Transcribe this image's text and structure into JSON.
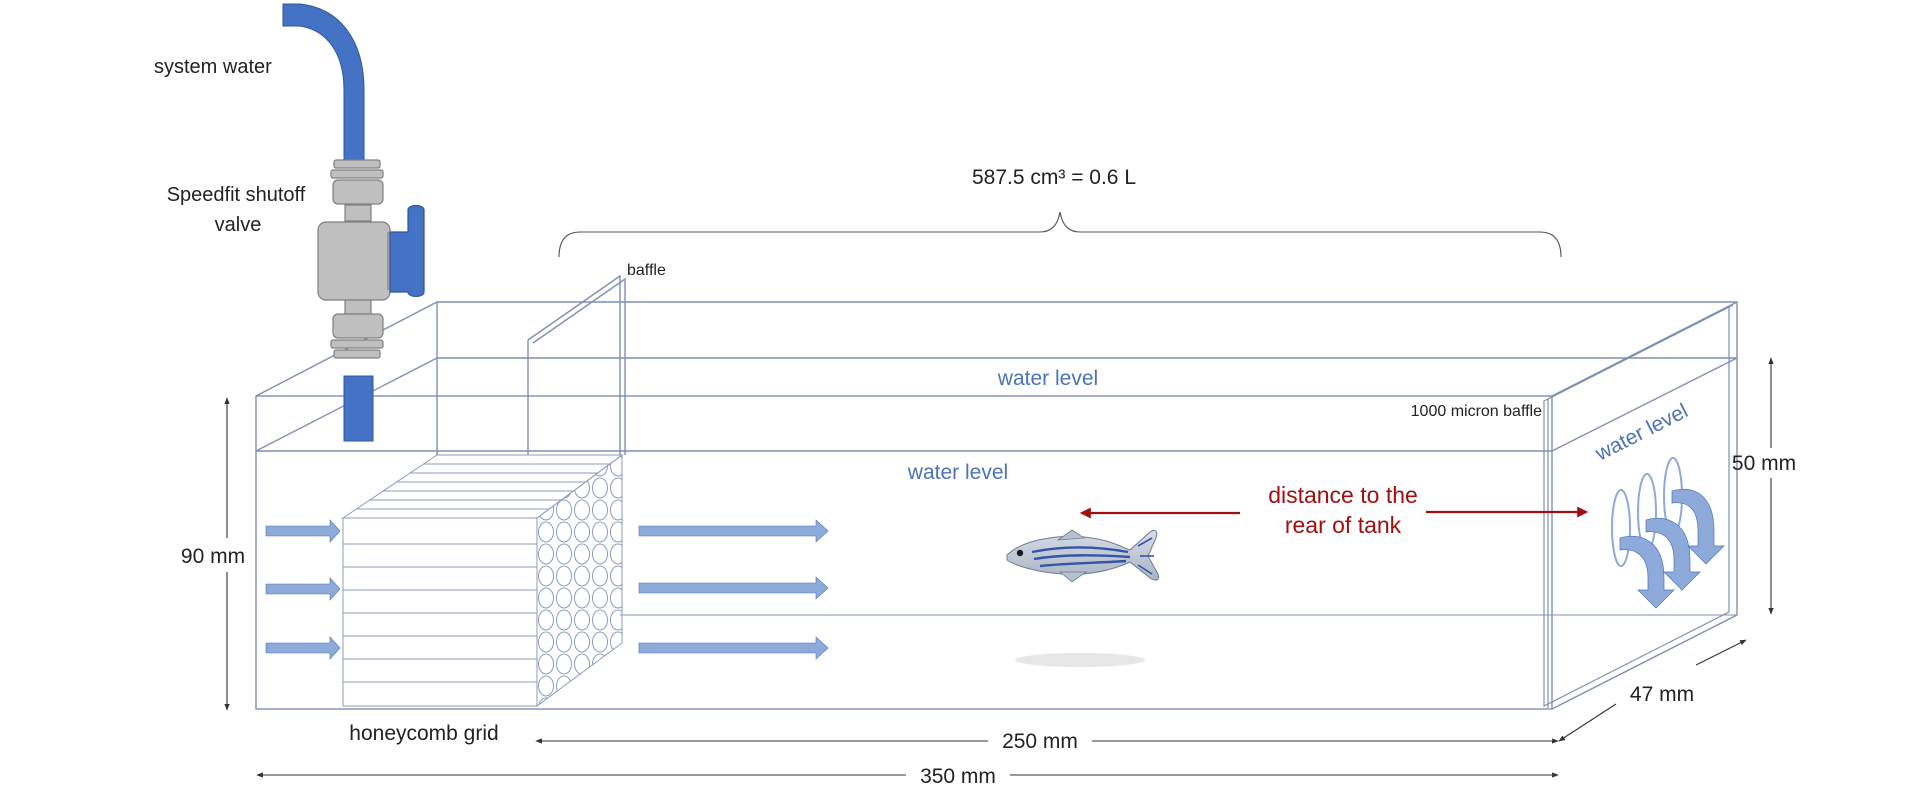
{
  "labels": {
    "system_water": "system water",
    "valve_line1": "Speedfit shutoff",
    "valve_line2": "valve",
    "volume": "587.5 cm³ = 0.6 L",
    "baffle": "baffle",
    "water_level_back": "water level",
    "water_level_front": "water level",
    "water_level_right": "water level",
    "micron_baffle": "1000 micron baffle",
    "distance_line1": "distance to the",
    "distance_line2": "rear of tank",
    "height_90": "90 mm",
    "height_50": "50 mm",
    "depth_47": "47 mm",
    "length_250": "250 mm",
    "length_350": "350 mm",
    "honeycomb": "honeycomb grid"
  },
  "colors": {
    "tank_outline": "#7f8fb5",
    "pipe": "#4472c4",
    "valve_body": "#bfbfbf",
    "flow_arrow": "#8eaadb",
    "water_text": "#4a74b8",
    "distance": "#a01010",
    "dimension": "#333333"
  },
  "icons": {
    "fish": "zebrafish-icon",
    "valve": "shutoff-valve-icon"
  }
}
